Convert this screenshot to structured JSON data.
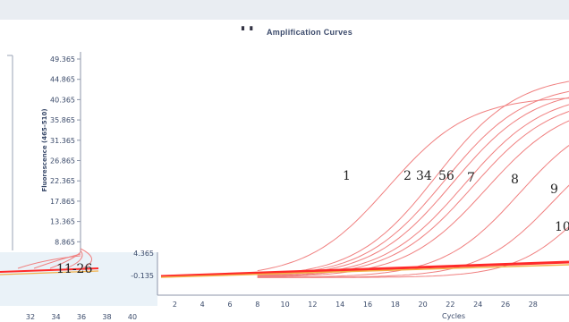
{
  "chart_data": {
    "type": "line",
    "title": "Amplification Curves",
    "xlabel": "Cycles",
    "ylabel": "Fluorescence (465-510)",
    "y_ticks": [
      "49.365",
      "44.865",
      "40.365",
      "35.865",
      "31.365",
      "26.865",
      "22.365",
      "17.865",
      "13.365",
      "8.865",
      "4.365",
      "-0.135"
    ],
    "x_ticks_main": [
      "2",
      "4",
      "6",
      "8",
      "10",
      "12",
      "14",
      "16",
      "18",
      "20",
      "22",
      "24",
      "26",
      "28"
    ],
    "x_ticks_left": [
      "32",
      "34",
      "36",
      "38",
      "40"
    ],
    "ylim": [
      -0.135,
      49.365
    ],
    "xlim": [
      1,
      30
    ],
    "grid": false,
    "curve_labels": [
      "1",
      "2",
      "34",
      "56",
      "7",
      "8",
      "9",
      "10",
      "11-26"
    ],
    "series": [
      {
        "label": "1",
        "max": 41,
        "midpoint": 17.5,
        "slope": 0.34
      },
      {
        "label": "2",
        "max": 46,
        "midpoint": 21.0,
        "slope": 0.34
      },
      {
        "label": "3",
        "max": 44,
        "midpoint": 21.6,
        "slope": 0.34
      },
      {
        "label": "4",
        "max": 43,
        "midpoint": 22.2,
        "slope": 0.34
      },
      {
        "label": "5",
        "max": 42,
        "midpoint": 23.0,
        "slope": 0.34
      },
      {
        "label": "6",
        "max": 41,
        "midpoint": 23.6,
        "slope": 0.34
      },
      {
        "label": "7",
        "max": 40,
        "midpoint": 24.6,
        "slope": 0.34
      },
      {
        "label": "8",
        "max": 38,
        "midpoint": 27.0,
        "slope": 0.36
      },
      {
        "label": "9",
        "max": 34,
        "midpoint": 29.4,
        "slope": 0.38
      },
      {
        "label": "10",
        "max": 30,
        "midpoint": 31.8,
        "slope": 0.4
      }
    ],
    "colors": {
      "curve": "#f08080",
      "flat": "#ff2a2a",
      "baseline": "#f2b24a"
    }
  }
}
